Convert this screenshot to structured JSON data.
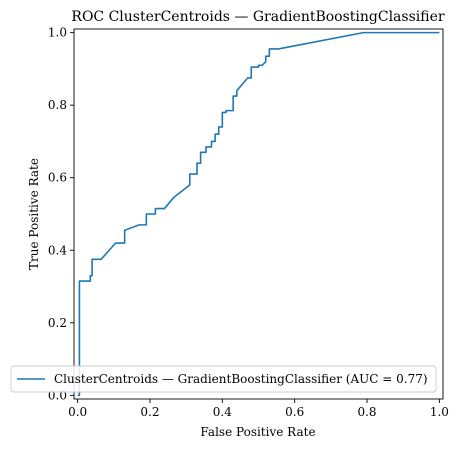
{
  "chart_data": {
    "type": "line",
    "title": "ROC ClusterCentroids — GradientBoostingClassifier",
    "xlabel": "False Positive Rate",
    "ylabel": "True Positive Rate",
    "xlim": [
      0,
      1
    ],
    "ylim": [
      0,
      1
    ],
    "xticks": [
      "0.0",
      "0.2",
      "0.4",
      "0.6",
      "0.8",
      "1.0"
    ],
    "yticks": [
      "0.0",
      "0.2",
      "0.4",
      "0.6",
      "0.8",
      "1.0"
    ],
    "grid": false,
    "legend_position": "lower-right",
    "series": [
      {
        "name": "ClusterCentroids — GradientBoostingClassifier (AUC = 0.77)",
        "color": "#1f77b4",
        "x": [
          0.0,
          0.0,
          0.005,
          0.005,
          0.035,
          0.035,
          0.04,
          0.04,
          0.065,
          0.105,
          0.13,
          0.13,
          0.17,
          0.19,
          0.19,
          0.215,
          0.215,
          0.24,
          0.265,
          0.31,
          0.31,
          0.33,
          0.33,
          0.34,
          0.34,
          0.355,
          0.355,
          0.37,
          0.37,
          0.38,
          0.38,
          0.39,
          0.39,
          0.4,
          0.4,
          0.41,
          0.41,
          0.43,
          0.43,
          0.44,
          0.44,
          0.47,
          0.48,
          0.48,
          0.5,
          0.5,
          0.51,
          0.52,
          0.52,
          0.53,
          0.53,
          0.55,
          0.555,
          0.79,
          1.0
        ],
        "y": [
          0.0,
          0.0,
          0.0,
          0.315,
          0.315,
          0.33,
          0.33,
          0.375,
          0.375,
          0.42,
          0.42,
          0.455,
          0.47,
          0.47,
          0.5,
          0.5,
          0.515,
          0.515,
          0.545,
          0.58,
          0.61,
          0.61,
          0.64,
          0.64,
          0.67,
          0.67,
          0.685,
          0.685,
          0.7,
          0.7,
          0.72,
          0.72,
          0.74,
          0.74,
          0.78,
          0.78,
          0.785,
          0.785,
          0.825,
          0.825,
          0.84,
          0.875,
          0.875,
          0.905,
          0.905,
          0.91,
          0.91,
          0.92,
          0.935,
          0.935,
          0.955,
          0.955,
          0.955,
          1.0,
          1.0
        ]
      }
    ]
  }
}
